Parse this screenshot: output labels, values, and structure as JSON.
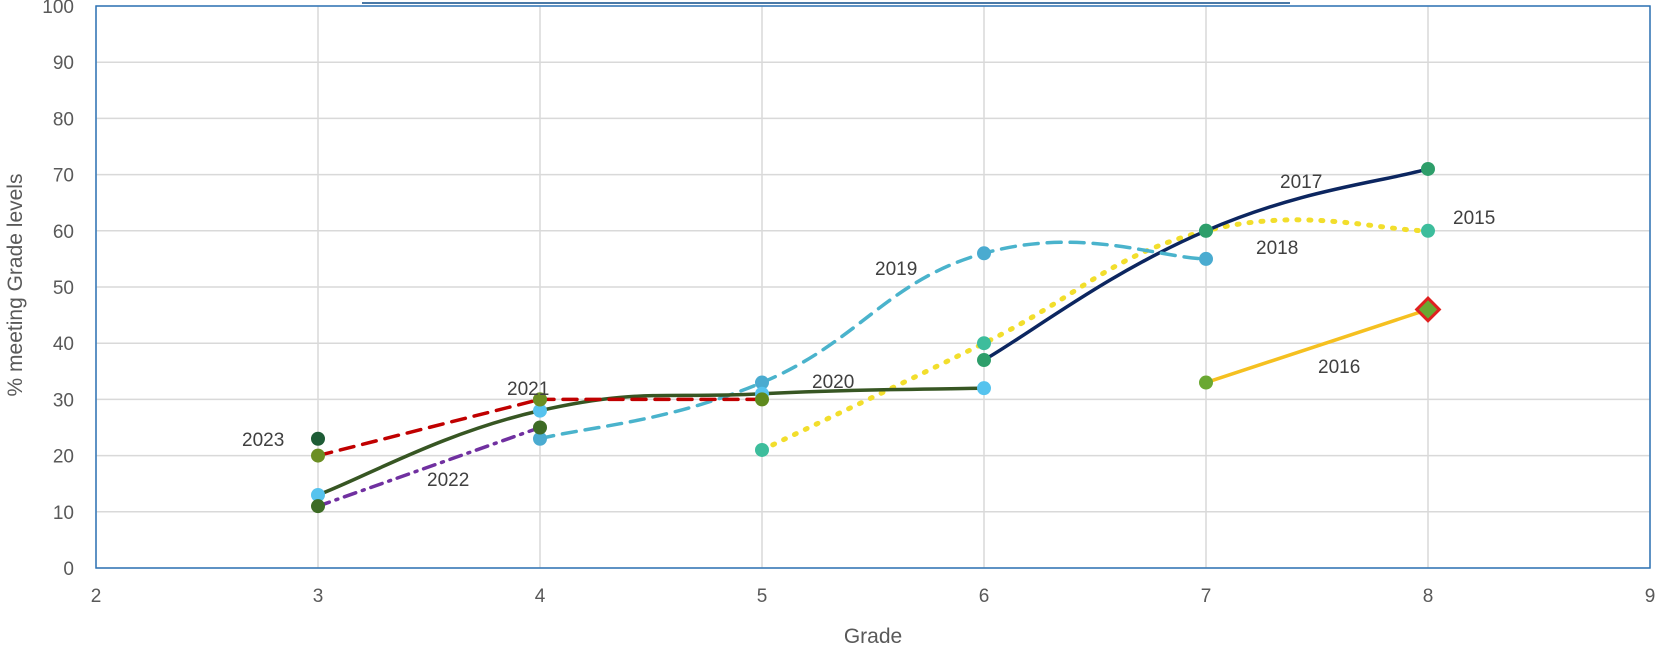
{
  "chart_data": {
    "type": "line",
    "title": "",
    "xlabel": "Grade",
    "ylabel": "% meeting Grade levels",
    "xlim": [
      2,
      9
    ],
    "ylim": [
      0,
      100
    ],
    "xticks": [
      "2",
      "3",
      "4",
      "5",
      "6",
      "7",
      "8",
      "9"
    ],
    "yticks": [
      "0",
      "10",
      "20",
      "30",
      "40",
      "50",
      "60",
      "70",
      "80",
      "90",
      "100"
    ],
    "grid": true,
    "legend": "none (series labeled inline)",
    "series": [
      {
        "name": "2015",
        "x": [
          5,
          6,
          7,
          8
        ],
        "y": [
          21,
          40,
          60,
          60
        ],
        "color": "#f2de2c",
        "dash": "dotted",
        "smooth": true,
        "marker_color": "#3dbd9c"
      },
      {
        "name": "2016",
        "x": [
          7,
          8
        ],
        "y": [
          33,
          46
        ],
        "color": "#f5c020",
        "dash": "solid",
        "smooth": false,
        "marker_color": "#6aa832",
        "end_marker": "red-diamond"
      },
      {
        "name": "2017",
        "x": [
          6,
          7,
          8
        ],
        "y": [
          37,
          60,
          71
        ],
        "color": "#0c2660",
        "dash": "solid",
        "smooth": true,
        "marker_color": "#2e9e6a"
      },
      {
        "name": "2018",
        "x": [
          4,
          5,
          6,
          7
        ],
        "y": [
          23,
          33,
          56,
          55
        ],
        "color": "#4ab3cc",
        "dash": "dashed",
        "smooth": true,
        "marker_color": "#4aabd0"
      },
      {
        "name": "2019",
        "x": [
          3,
          4,
          5,
          6
        ],
        "y": [
          13,
          28,
          31,
          32
        ],
        "color": "#375623",
        "dash": "solid",
        "smooth": true,
        "marker_color": "#56c3ee"
      },
      {
        "name": "2020",
        "x": [
          4,
          5
        ],
        "y": [
          30,
          30
        ],
        "color": "#c00000",
        "dash": "dashed",
        "smooth": true,
        "marker_color": "#5f8a1e"
      },
      {
        "name": "2021",
        "x": [
          3,
          4
        ],
        "y": [
          20,
          30
        ],
        "color": "#c00000",
        "dash": "dashed",
        "smooth": false,
        "marker_color": "#6b8e23"
      },
      {
        "name": "2022",
        "x": [
          3,
          4
        ],
        "y": [
          11,
          25
        ],
        "color": "#7030a0",
        "dash": "dashdot",
        "smooth": false,
        "marker_color": "#3d6b25"
      },
      {
        "name": "2023",
        "x": [
          3
        ],
        "y": [
          23
        ],
        "color": "#1e5c36",
        "dash": "solid",
        "smooth": false,
        "marker_color": "#1e5c36"
      }
    ]
  }
}
